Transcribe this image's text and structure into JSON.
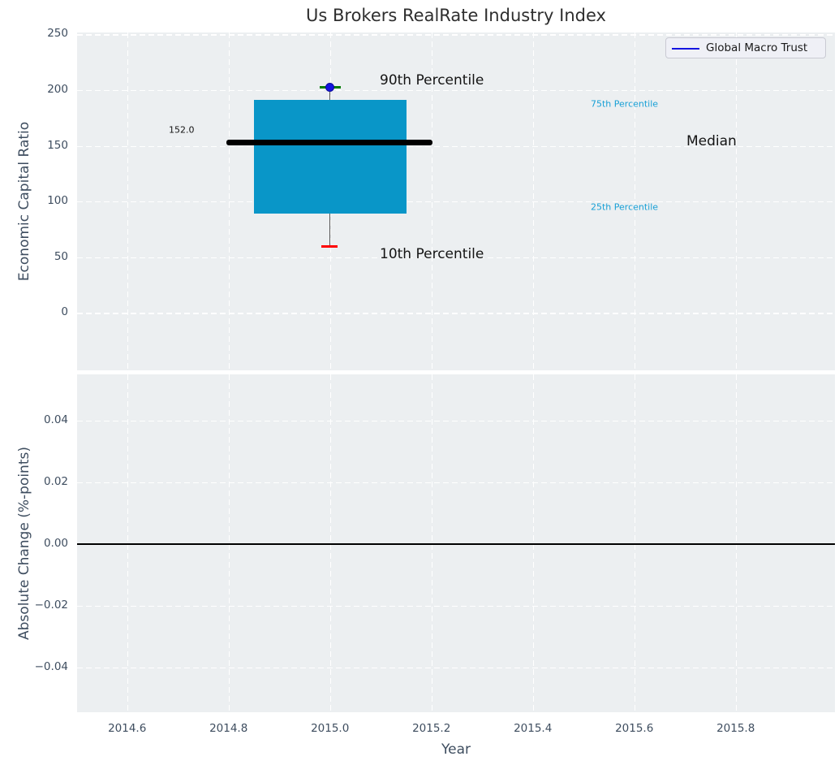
{
  "title": "Us Brokers RealRate Industry Index",
  "legend": {
    "label": "Global Macro Trust"
  },
  "colors": {
    "axes_background": "#ECEFF1",
    "grid": "#FFFFFF",
    "box_fill": "#0996C8",
    "median_line": "#000000",
    "whisker": "#555555",
    "cap_90th": "#007D00",
    "cap_10th": "#FF0000",
    "marker_blue": "#1414E0",
    "legend_line_blue": "#1414E0",
    "percentile_label_cyan": "#18A0D6",
    "tick_text": "#3E4D5F"
  },
  "top_plot": {
    "ylabel": "Economic Capital Ratio",
    "yticks": [
      "250",
      "200",
      "150",
      "100",
      "50",
      "0"
    ],
    "annotations": {
      "p90": "90th Percentile",
      "p75": "75th Percentile",
      "median": "Median",
      "p25": "25th Percentile",
      "p10": "10th Percentile",
      "median_value": "152.0"
    }
  },
  "bottom_plot": {
    "ylabel": "Absolute Change (%-points)",
    "xlabel": "Year",
    "yticks": [
      "0.04",
      "0.02",
      "0.00",
      "−0.02",
      "−0.04"
    ],
    "xticks": [
      "2014.6",
      "2014.8",
      "2015.0",
      "2015.2",
      "2015.4",
      "2015.6",
      "2015.8"
    ]
  },
  "chart_data": [
    {
      "type": "boxplot",
      "title": "Us Brokers RealRate Industry Index",
      "ylabel": "Economic Capital Ratio",
      "series": [
        {
          "name": "Global Macro Trust",
          "x": 2015.0,
          "p10": 60,
          "p25": 89,
          "median": 152.0,
          "p75": 191,
          "p90": 202,
          "median_data_label": "152.0"
        }
      ],
      "yticks": [
        250,
        200,
        150,
        100,
        50,
        0
      ],
      "ylim": [
        -60,
        253
      ],
      "xlim": [
        2014.5,
        2015.98
      ],
      "grid": true,
      "grid_style": "white dashed",
      "legend_position": "upper right",
      "legend_entries": [
        "Global Macro Trust"
      ],
      "annotation_labels": [
        "90th Percentile",
        "75th Percentile",
        "Median",
        "25th Percentile",
        "10th Percentile"
      ]
    },
    {
      "type": "line",
      "ylabel": "Absolute Change (%-points)",
      "xlabel": "Year",
      "series": [],
      "zero_line_y": 0.0,
      "yticks": [
        0.04,
        0.02,
        0.0,
        -0.02,
        -0.04
      ],
      "ylim": [
        -0.055,
        0.055
      ],
      "xticks": [
        2014.6,
        2014.8,
        2015.0,
        2015.2,
        2015.4,
        2015.6,
        2015.8
      ],
      "xlim": [
        2014.5,
        2015.98
      ],
      "grid": true,
      "grid_style": "white dashed"
    }
  ]
}
